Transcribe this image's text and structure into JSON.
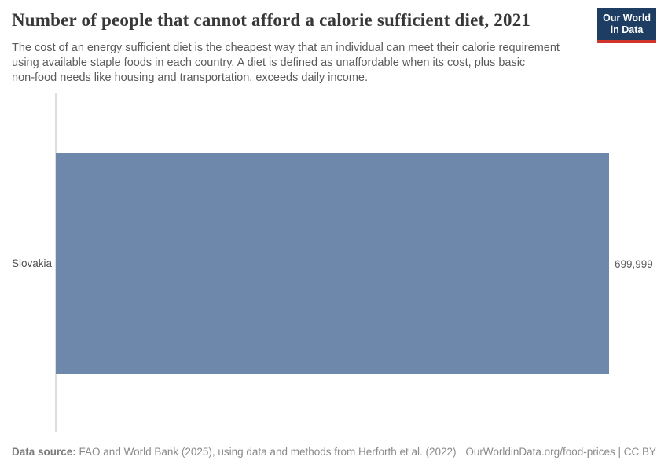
{
  "header": {
    "title": "Number of people that cannot afford a calorie sufficient diet, 2021",
    "subtitle_lines": [
      "The cost of an energy sufficient diet is the cheapest way that an individual can meet their calorie requirement",
      "using available staple foods in each country. A diet is defined as unaffordable when its cost, plus basic",
      "non-food needs like housing and transportation, exceeds daily income."
    ],
    "logo": {
      "line1": "Our World",
      "line2": "in Data",
      "bg_color": "#1d3d63",
      "accent_color": "#d0342b"
    }
  },
  "chart_data": {
    "type": "bar",
    "orientation": "horizontal",
    "title": "Number of people that cannot afford a calorie sufficient diet, 2021",
    "categories": [
      "Slovakia"
    ],
    "values": [
      699999
    ],
    "value_labels": [
      "699,999"
    ],
    "xlim": [
      0,
      700000
    ],
    "grid": false,
    "legend": "none",
    "bar_color": "#6d88ab",
    "axis_line_color": "#dedede"
  },
  "footer": {
    "source_label": "Data source:",
    "source_text": "FAO and World Bank (2025), using data and methods from Herforth et al. (2022)",
    "link_text": "OurWorldinData.org/food-prices | CC BY"
  }
}
